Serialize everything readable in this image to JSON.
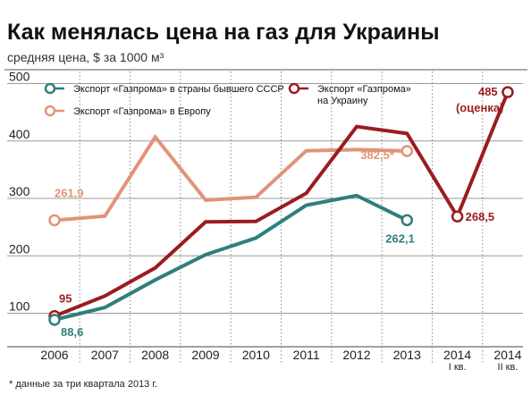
{
  "title": "Как менялась цена на газ для Украины",
  "subtitle": "средняя цена, $ за 1000 м³",
  "footnote": "* данные за три квартала 2013 г.",
  "chart_data": {
    "type": "line",
    "categories": [
      "2006",
      "2007",
      "2008",
      "2009",
      "2010",
      "2011",
      "2012",
      "2013",
      "2014",
      "2014"
    ],
    "category_sublabels": [
      "",
      "",
      "",
      "",
      "",
      "",
      "",
      "",
      "I кв.",
      "II кв."
    ],
    "y_ticks": [
      100,
      200,
      300,
      400,
      500
    ],
    "ylim": [
      50,
      510
    ],
    "grid": "horizontal",
    "series": [
      {
        "name": "Экспорт «Газпрома» в страны бывшего СССР",
        "color": "#2e7f7d",
        "values": [
          88.6,
          110,
          158,
          202,
          231,
          288,
          305,
          262.1,
          null,
          null
        ]
      },
      {
        "name": "Экспорт «Газпрома» в Европу",
        "color": "#e09478",
        "values": [
          261.9,
          269,
          407,
          297,
          302,
          383,
          385,
          382.5,
          null,
          null
        ]
      },
      {
        "name": "Экспорт «Газпрома» на Украину",
        "color": "#9b1c1f",
        "values": [
          95,
          130,
          179,
          259,
          260,
          309,
          425,
          413,
          268.5,
          485
        ]
      }
    ],
    "legend": [
      {
        "text": "Экспорт «Газпрома» в страны бывшего СССР",
        "color": "#2e7f7d"
      },
      {
        "text": "Экспорт «Газпрома» в Европу",
        "color": "#e09478"
      },
      {
        "text": "Экспорт «Газпрома»",
        "text2": "на Украину",
        "color": "#9b1c1f"
      }
    ],
    "annotations": [
      {
        "text": "261,9",
        "series": 1,
        "index": 0,
        "color": "#e09478"
      },
      {
        "text": "382,5*",
        "series": 1,
        "index": 7,
        "color": "#e09478"
      },
      {
        "text": "262,1",
        "series": 0,
        "index": 7,
        "color": "#2e7f7d"
      },
      {
        "text": "88,6",
        "series": 0,
        "index": 0,
        "color": "#2e7f7d"
      },
      {
        "text": "95",
        "series": 2,
        "index": 0,
        "color": "#9b1c1f"
      },
      {
        "text": "268,5",
        "series": 2,
        "index": 8,
        "color": "#9b1c1f"
      },
      {
        "text": "485",
        "series": 2,
        "index": 9,
        "color": "#9b1c1f"
      },
      {
        "text": "(оценка)",
        "series": 2,
        "index": 9,
        "color": "#9b1c1f"
      }
    ]
  }
}
